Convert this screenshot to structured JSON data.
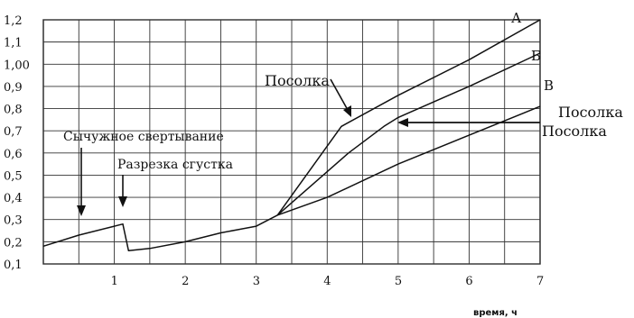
{
  "chart_data": {
    "type": "line",
    "title": "",
    "xlabel": "время, ч",
    "ylabel": "",
    "xlim": [
      0,
      7
    ],
    "ylim": [
      0.1,
      1.2
    ],
    "x_ticks": [
      "1",
      "2",
      "3",
      "4",
      "5",
      "6",
      "7"
    ],
    "y_ticks": [
      "0,1",
      "0,2",
      "0,3",
      "0,4",
      "0,5",
      "0,6",
      "0,7",
      "0,8",
      "0,9",
      "1,00",
      "1,1",
      "1,2"
    ],
    "grid": true,
    "series": [
      {
        "name": "А",
        "x": [
          0,
          0.5,
          1.0,
          1.12,
          1.2,
          1.5,
          2.0,
          2.5,
          3.0,
          3.3,
          4.2,
          5.0,
          6.0,
          7.0
        ],
        "y": [
          0.18,
          0.23,
          0.27,
          0.28,
          0.16,
          0.17,
          0.2,
          0.24,
          0.27,
          0.32,
          0.72,
          0.86,
          1.02,
          1.2
        ]
      },
      {
        "name": "Б",
        "x": [
          3.3,
          3.8,
          4.3,
          4.8,
          5.0,
          6.0,
          7.0
        ],
        "y": [
          0.32,
          0.46,
          0.6,
          0.72,
          0.76,
          0.9,
          1.05
        ]
      },
      {
        "name": "В",
        "x": [
          3.3,
          4.0,
          5.0,
          6.0,
          7.0
        ],
        "y": [
          0.32,
          0.4,
          0.55,
          0.68,
          0.81
        ]
      }
    ],
    "annotations": [
      {
        "text": "Сычужное свертывание"
      },
      {
        "text": "Разрезка сгустка"
      },
      {
        "text": "Посолка"
      },
      {
        "text": "Посолка"
      },
      {
        "text": "Посолка"
      }
    ]
  }
}
